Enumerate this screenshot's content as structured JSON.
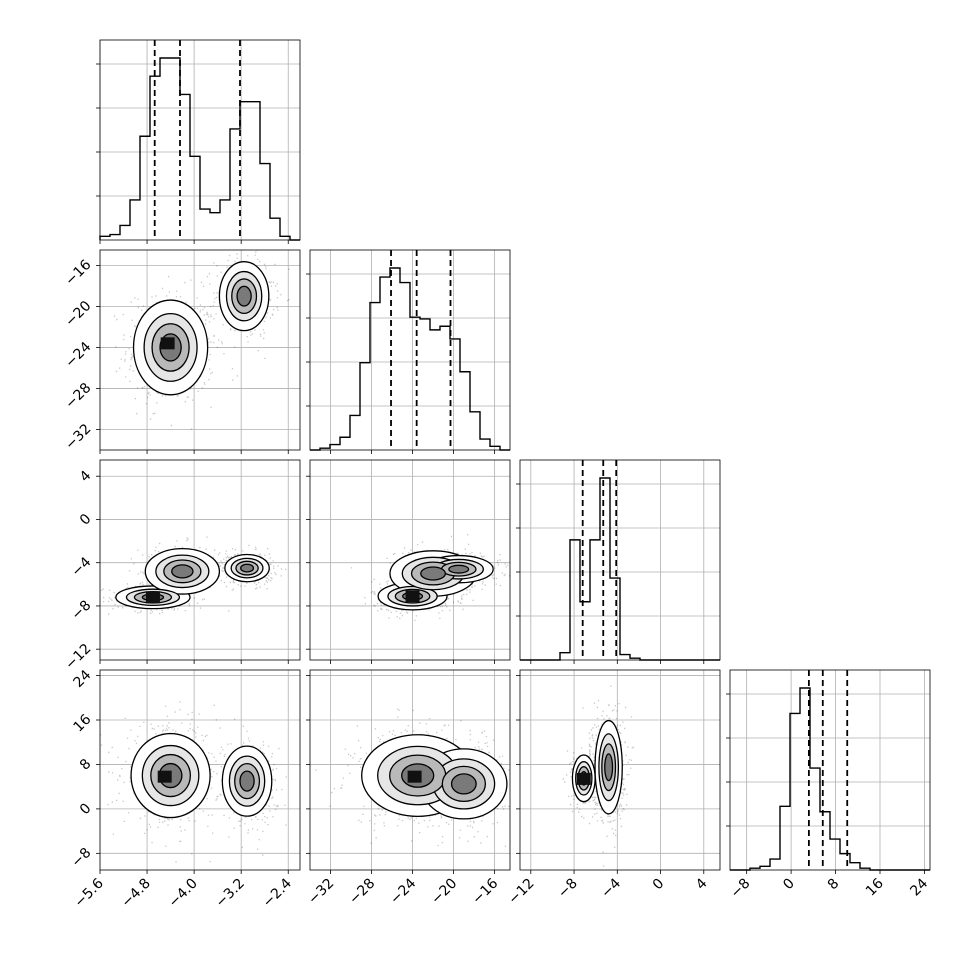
{
  "chart_data": {
    "type": "corner",
    "grid": true,
    "parameters": [
      {
        "ticks": [
          "−5.6",
          "−4.8",
          "−4.0",
          "−3.2",
          "−2.4"
        ],
        "tick_values": [
          -5.6,
          -4.8,
          -4.0,
          -3.2,
          -2.4
        ],
        "range": [
          -5.6,
          -2.2
        ],
        "quantiles": [
          -4.67,
          -4.24,
          -3.22
        ],
        "hist_counts": [
          0.02,
          0.03,
          0.08,
          0.22,
          0.57,
          0.9,
          1.0,
          1.0,
          0.8,
          0.46,
          0.17,
          0.15,
          0.22,
          0.61,
          0.76,
          0.76,
          0.42,
          0.12,
          0.02,
          0.0
        ],
        "modes": [
          {
            "mean": -4.4,
            "std": 0.28,
            "weight": 0.6
          },
          {
            "mean": -3.1,
            "std": 0.18,
            "weight": 0.4
          }
        ]
      },
      {
        "ticks": [
          "−32",
          "−28",
          "−24",
          "−20",
          "−16"
        ],
        "tick_values": [
          -32,
          -28,
          -24,
          -20,
          -16
        ],
        "range": [
          -34,
          -14.5
        ],
        "quantiles": [
          -26.1,
          -23.6,
          -20.3
        ],
        "hist_counts": [
          0.0,
          0.01,
          0.03,
          0.07,
          0.19,
          0.48,
          0.81,
          0.95,
          1.0,
          0.92,
          0.73,
          0.72,
          0.66,
          0.68,
          0.61,
          0.43,
          0.21,
          0.06,
          0.02,
          0.0
        ],
        "modes": [
          {
            "mean": -24.0,
            "std": 1.6,
            "weight": 0.6
          },
          {
            "mean": -19.5,
            "std": 1.5,
            "weight": 0.4
          }
        ]
      },
      {
        "ticks": [
          "−12",
          "−8",
          "−4",
          "0",
          "4"
        ],
        "tick_values": [
          -12,
          -8,
          -4,
          0,
          4
        ],
        "range": [
          -13,
          5.5
        ],
        "quantiles": [
          -7.2,
          -5.3,
          -4.1
        ],
        "hist_counts": [
          0.0,
          0.0,
          0.0,
          0.0,
          0.04,
          0.66,
          0.32,
          0.66,
          1.0,
          0.45,
          0.03,
          0.01,
          0.0,
          0.0,
          0.0,
          0.0,
          0.0,
          0.0,
          0.0,
          0.0
        ],
        "modes": [
          {
            "mean": -7.1,
            "std": 0.5,
            "weight": 0.35
          },
          {
            "mean": -4.8,
            "std": 0.7,
            "weight": 0.65
          }
        ]
      },
      {
        "ticks": [
          "−8",
          "0",
          "8",
          "16",
          "24"
        ],
        "tick_values": [
          -8,
          0,
          8,
          16,
          24
        ],
        "range": [
          -11,
          25
        ],
        "quantiles": [
          3.2,
          5.7,
          10.1
        ],
        "hist_counts": [
          0.0,
          0.0,
          0.01,
          0.02,
          0.06,
          0.35,
          0.86,
          1.0,
          0.56,
          0.32,
          0.17,
          0.09,
          0.04,
          0.01,
          0.0,
          0.0,
          0.0,
          0.0,
          0.0,
          0.0
        ],
        "modes": [
          {
            "mean": 5.0,
            "std": 2.2,
            "weight": 0.7
          },
          {
            "mean": 11.0,
            "std": 2.5,
            "weight": 0.3
          }
        ]
      }
    ],
    "scatter_pairs": [
      {
        "row": 1,
        "col": 0,
        "centers": [
          [
            -4.4,
            -24.0
          ],
          [
            -3.15,
            -19.0
          ]
        ],
        "spread": [
          [
            0.3,
            2.2
          ],
          [
            0.2,
            1.6
          ]
        ],
        "weights": [
          0.6,
          0.4
        ]
      },
      {
        "row": 2,
        "col": 0,
        "centers": [
          [
            -4.7,
            -7.2
          ],
          [
            -4.2,
            -4.8
          ],
          [
            -3.1,
            -4.5
          ]
        ],
        "spread": [
          [
            0.3,
            0.5
          ],
          [
            0.3,
            1.0
          ],
          [
            0.18,
            0.6
          ]
        ],
        "weights": [
          0.35,
          0.3,
          0.35
        ]
      },
      {
        "row": 2,
        "col": 1,
        "centers": [
          [
            -24.0,
            -7.1
          ],
          [
            -22.0,
            -5.0
          ],
          [
            -19.5,
            -4.6
          ]
        ],
        "spread": [
          [
            1.6,
            0.6
          ],
          [
            2.0,
            1.0
          ],
          [
            1.6,
            0.6
          ]
        ],
        "weights": [
          0.35,
          0.3,
          0.35
        ]
      },
      {
        "row": 3,
        "col": 0,
        "centers": [
          [
            -4.4,
            6.0
          ],
          [
            -3.1,
            5.0
          ]
        ],
        "spread": [
          [
            0.32,
            3.6
          ],
          [
            0.2,
            3.0
          ]
        ],
        "weights": [
          0.6,
          0.4
        ]
      },
      {
        "row": 3,
        "col": 1,
        "centers": [
          [
            -23.5,
            6.0
          ],
          [
            -19.0,
            4.5
          ]
        ],
        "spread": [
          [
            2.6,
            3.5
          ],
          [
            2.0,
            3.0
          ]
        ],
        "weights": [
          0.6,
          0.4
        ]
      },
      {
        "row": 3,
        "col": 2,
        "centers": [
          [
            -7.1,
            5.5
          ],
          [
            -4.8,
            7.5
          ]
        ],
        "spread": [
          [
            0.5,
            2.0
          ],
          [
            0.6,
            4.0
          ]
        ],
        "weights": [
          0.35,
          0.65
        ]
      }
    ],
    "dark_bins": [
      {
        "row": 1,
        "col": 0,
        "x": -4.45,
        "y": -23.6
      },
      {
        "row": 2,
        "col": 0,
        "x": -4.7,
        "y": -7.2
      },
      {
        "row": 2,
        "col": 1,
        "x": -24.0,
        "y": -7.1
      },
      {
        "row": 3,
        "col": 0,
        "x": -4.5,
        "y": 5.8
      },
      {
        "row": 3,
        "col": 1,
        "x": -23.8,
        "y": 5.8
      },
      {
        "row": 3,
        "col": 2,
        "x": -7.1,
        "y": 5.4
      }
    ]
  }
}
